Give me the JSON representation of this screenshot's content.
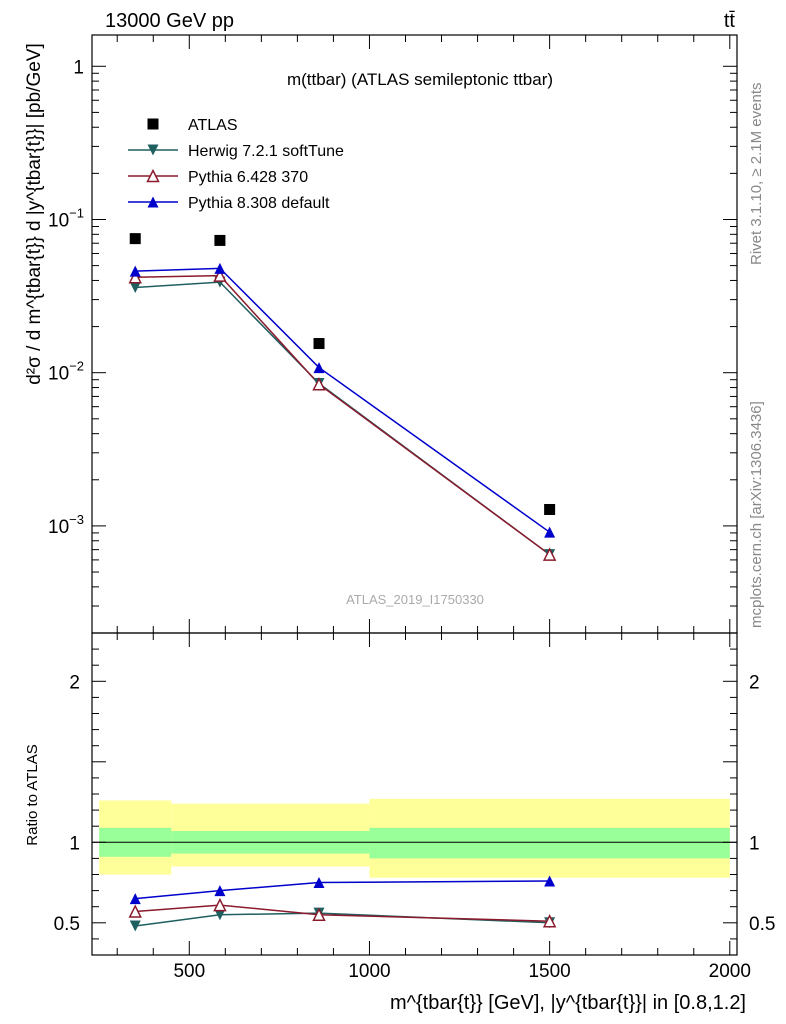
{
  "header": {
    "energy_label": "13000 GeV pp",
    "process_label": "tt̄"
  },
  "side": {
    "rivet_label": "Rivet 3.1.10, ≥ 2.1M events",
    "mcplots_label": "mcplots.cern.ch [arXiv:1306.3436]"
  },
  "analysis_id": "ATLAS_2019_I1750330",
  "chart_data": [
    {
      "type": "scatter",
      "title": "m(ttbar) (ATLAS semileptonic ttbar)",
      "ylabel": "d²σ / d m^{tbar{t}} d |y^{tbar{t}}| [pb/GeV]",
      "xlabel": "m^{tbar{t}} [GeV], |y^{tbar{t}}| in [0.8,1.2]",
      "xlim": [
        230,
        2020
      ],
      "ylim": [
        0.0002,
        1.6
      ],
      "log_y": true,
      "y_ticks": [
        {
          "value": 1,
          "label": "1"
        },
        {
          "value": 0.1,
          "label": "10",
          "exp": "−1"
        },
        {
          "value": 0.01,
          "label": "10",
          "exp": "−2"
        },
        {
          "value": 0.001,
          "label": "10",
          "exp": "−3"
        }
      ],
      "legend_position": "top-left",
      "series": [
        {
          "name": "ATLAS",
          "color": "#000000",
          "marker": "square",
          "x": [
            350,
            585,
            860,
            1500
          ],
          "y": [
            0.075,
            0.073,
            0.0155,
            0.00128
          ]
        },
        {
          "name": "Herwig 7.2.1 softTune",
          "color": "#1f5f60",
          "marker": "triangle-down",
          "x": [
            350,
            585,
            860,
            1500
          ],
          "y": [
            0.036,
            0.039,
            0.0085,
            0.00065
          ]
        },
        {
          "name": "Pythia 6.428 370",
          "color": "#8b1a2c",
          "marker": "triangle-up-open",
          "x": [
            350,
            585,
            860,
            1500
          ],
          "y": [
            0.042,
            0.043,
            0.0084,
            0.00065
          ]
        },
        {
          "name": "Pythia 8.308 default",
          "color": "#0000cc",
          "marker": "triangle-up",
          "x": [
            350,
            585,
            860,
            1500
          ],
          "y": [
            0.046,
            0.048,
            0.0108,
            0.00091
          ]
        }
      ]
    },
    {
      "type": "scatter",
      "ylabel": "Ratio to ATLAS",
      "xlim": [
        230,
        2020
      ],
      "ylim": [
        0.3,
        2.3
      ],
      "x_ticks": [
        500,
        1000,
        1500,
        2000
      ],
      "y_ticks": [
        0.5,
        1,
        2
      ],
      "bands": [
        {
          "x0": 250,
          "x1": 450,
          "outer": [
            0.8,
            1.26
          ],
          "inner": [
            0.91,
            1.09
          ]
        },
        {
          "x0": 450,
          "x1": 1000,
          "outer": [
            0.85,
            1.24
          ],
          "inner": [
            0.93,
            1.07
          ]
        },
        {
          "x0": 1000,
          "x1": 2000,
          "outer": [
            0.78,
            1.27
          ],
          "inner": [
            0.9,
            1.09
          ]
        }
      ],
      "band_colors": {
        "outer": "#ffff99",
        "inner": "#99ff99"
      },
      "series": [
        {
          "name": "Herwig 7.2.1 softTune",
          "color": "#1f5f60",
          "marker": "triangle-down",
          "x": [
            350,
            585,
            860,
            1500
          ],
          "y": [
            0.48,
            0.55,
            0.56,
            0.5
          ]
        },
        {
          "name": "Pythia 6.428 370",
          "color": "#8b1a2c",
          "marker": "triangle-up-open",
          "x": [
            350,
            585,
            860,
            1500
          ],
          "y": [
            0.57,
            0.61,
            0.55,
            0.51
          ]
        },
        {
          "name": "Pythia 8.308 default",
          "color": "#0000cc",
          "marker": "triangle-up",
          "x": [
            350,
            585,
            860,
            1500
          ],
          "y": [
            0.65,
            0.7,
            0.75,
            0.76
          ]
        }
      ]
    }
  ]
}
